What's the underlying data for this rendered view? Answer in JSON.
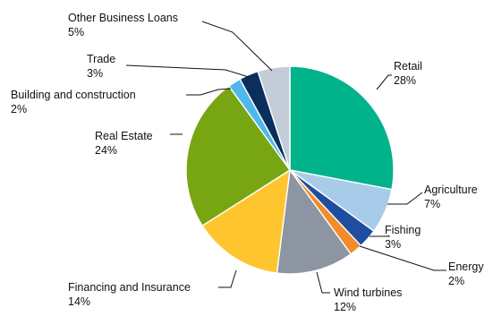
{
  "chart_data": {
    "type": "pie",
    "title": "",
    "start_angle_deg": 0,
    "direction": "clockwise",
    "slices": [
      {
        "label": "Retail",
        "value": 28,
        "value_label": "28%",
        "color": "#00b38a"
      },
      {
        "label": "Agriculture",
        "value": 7,
        "value_label": "7%",
        "color": "#a9cbea"
      },
      {
        "label": "Fishing",
        "value": 3,
        "value_label": "3%",
        "color": "#1f4e9e"
      },
      {
        "label": "Energy",
        "value": 2,
        "value_label": "2%",
        "color": "#f28c2a"
      },
      {
        "label": "Wind turbines",
        "value": 12,
        "value_label": "12%",
        "color": "#8c95a1"
      },
      {
        "label": "Financing and Insurance",
        "value": 14,
        "value_label": "14%",
        "color": "#ffc52f"
      },
      {
        "label": "Real Estate",
        "value": 24,
        "value_label": "24%",
        "color": "#78a612"
      },
      {
        "label": "Building and construction",
        "value": 2,
        "value_label": "2%",
        "color": "#4fb8ec"
      },
      {
        "label": "Trade",
        "value": 3,
        "value_label": "3%",
        "color": "#0b2f5b"
      },
      {
        "label": "Other Business Loans",
        "value": 5,
        "value_label": "5%",
        "color": "#c3ccd8"
      }
    ]
  }
}
